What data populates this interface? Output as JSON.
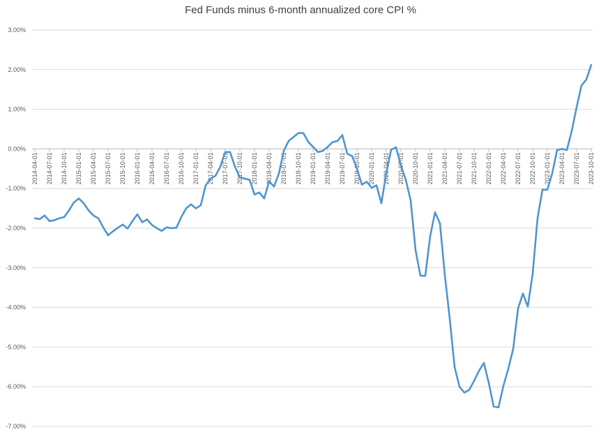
{
  "chart_data": {
    "type": "line",
    "title": "Fed Funds minus 6-month annualized core CPI %",
    "xlabel": "",
    "ylabel": "",
    "ylim": [
      -7,
      3
    ],
    "y_ticks": [
      "3.00%",
      "2.00%",
      "1.00%",
      "0.00%",
      "-1.00%",
      "-2.00%",
      "-3.00%",
      "-4.00%",
      "-5.00%",
      "-6.00%",
      "-7.00%"
    ],
    "y_tick_values": [
      3,
      2,
      1,
      0,
      -1,
      -2,
      -3,
      -4,
      -5,
      -6,
      -7
    ],
    "x_tick_labels": [
      "2014-04-01",
      "2014-07-01",
      "2014-10-01",
      "2015-01-01",
      "2015-04-01",
      "2015-07-01",
      "2015-10-01",
      "2016-01-01",
      "2016-04-01",
      "2016-07-01",
      "2016-10-01",
      "2017-01-01",
      "2017-04-01",
      "2017-07-01",
      "2017-10-01",
      "2018-01-01",
      "2018-04-01",
      "2018-07-01",
      "2018-10-01",
      "2019-01-01",
      "2019-04-01",
      "2019-07-01",
      "2019-10-01",
      "2020-01-01",
      "2020-04-01",
      "2020-07-01",
      "2020-10-01",
      "2021-01-01",
      "2021-04-01",
      "2021-07-01",
      "2021-10-01",
      "2022-01-01",
      "2022-04-01",
      "2022-07-01",
      "2022-10-01",
      "2023-01-01",
      "2023-04-01",
      "2023-07-01",
      "2023-10-01"
    ],
    "grid": true,
    "line_color": "#4e95d0",
    "series": [
      {
        "values": [
          -1.75,
          -1.77,
          -1.68,
          -1.82,
          -1.8,
          -1.75,
          -1.72,
          -1.55,
          -1.35,
          -1.25,
          -1.37,
          -1.55,
          -1.68,
          -1.75,
          -1.98,
          -2.18,
          -2.08,
          -1.99,
          -1.91,
          -2.01,
          -1.82,
          -1.65,
          -1.85,
          -1.78,
          -1.92,
          -2.0,
          -2.07,
          -1.98,
          -2.0,
          -1.99,
          -1.72,
          -1.5,
          -1.4,
          -1.5,
          -1.42,
          -0.92,
          -0.75,
          -0.68,
          -0.45,
          -0.08,
          -0.08,
          -0.45,
          -0.72,
          -0.75,
          -0.78,
          -1.15,
          -1.1,
          -1.25,
          -0.82,
          -0.95,
          -0.62,
          -0.05,
          0.2,
          0.3,
          0.4,
          0.4,
          0.18,
          0.05,
          -0.08,
          -0.05,
          0.05,
          0.17,
          0.2,
          0.35,
          -0.12,
          -0.18,
          -0.5,
          -0.9,
          -0.83,
          -0.98,
          -0.92,
          -1.37,
          -0.62,
          -0.02,
          0.04,
          -0.42,
          -0.78,
          -1.3,
          -2.55,
          -3.2,
          -3.2,
          -2.2,
          -1.6,
          -1.88,
          -3.18,
          -4.28,
          -5.5,
          -6.0,
          -6.15,
          -6.08,
          -5.85,
          -5.6,
          -5.4,
          -5.9,
          -6.5,
          -6.52,
          -5.98,
          -5.55,
          -5.05,
          -4.03,
          -3.65,
          -3.98,
          -3.15,
          -1.75,
          -1.03,
          -1.03,
          -0.62,
          -0.03,
          0.0,
          -0.03,
          0.45,
          1.05,
          1.6,
          1.75,
          2.12
        ]
      }
    ]
  }
}
